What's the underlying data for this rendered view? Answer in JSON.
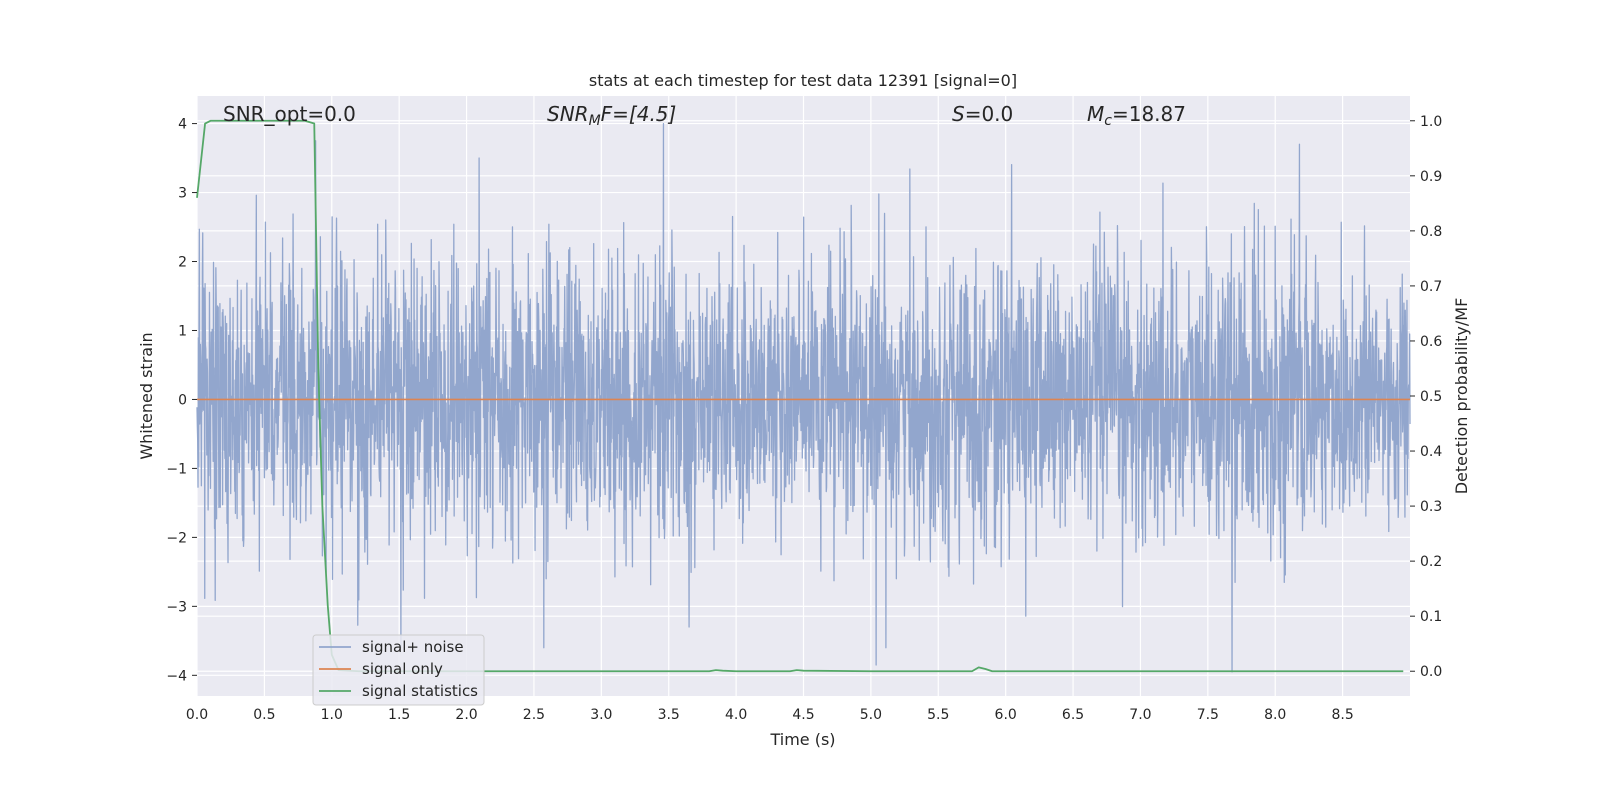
{
  "chart_data": {
    "type": "line",
    "title": "stats at each timestep for test data 12391 [signal=0]",
    "xlabel": "Time (s)",
    "ylabel_left": "Whitened strain",
    "ylabel_right": "Detection probability/MF",
    "xlim": [
      0.0,
      9.0
    ],
    "ylim_left": [
      -4.3,
      4.4
    ],
    "ylim_right": [
      -0.045,
      1.045
    ],
    "grid": true,
    "legend_position": "lower-left",
    "x_ticks": [
      "0.0",
      "0.5",
      "1.0",
      "1.5",
      "2.0",
      "2.5",
      "3.0",
      "3.5",
      "4.0",
      "4.5",
      "5.0",
      "5.5",
      "6.0",
      "6.5",
      "7.0",
      "7.5",
      "8.0",
      "8.5"
    ],
    "y_ticks_left": [
      "4",
      "3",
      "2",
      "1",
      "0",
      "−1",
      "−2",
      "−3",
      "−4"
    ],
    "y_ticks_right": [
      "1.0",
      "0.9",
      "0.8",
      "0.7",
      "0.6",
      "0.5",
      "0.4",
      "0.3",
      "0.2",
      "0.1",
      "0.0"
    ],
    "annotations": {
      "snr_opt": "SNR_opt=0.0",
      "snr_mf_base": "SNR",
      "snr_mf_sub": "M",
      "snr_mf_rest": "F=[4.5]",
      "s_italic": "S",
      "s_rest": "=0.0",
      "mc_italic": "M",
      "mc_sub": "c",
      "mc_rest": "=18.87"
    },
    "series": [
      {
        "name": "signal+ noise",
        "axis": "left",
        "color": "#92a6cd",
        "description": "noise",
        "amplitude_std": 1.0,
        "visible_peaks": [
          {
            "x": 0.88,
            "y": 3.75
          },
          {
            "x": 3.46,
            "y": 4.0
          },
          {
            "x": 5.04,
            "y": -3.85
          },
          {
            "x": 7.68,
            "y": -3.95
          },
          {
            "x": 8.18,
            "y": 3.7
          }
        ]
      },
      {
        "name": "signal only",
        "axis": "left",
        "color": "#dd8452",
        "x": [
          0.0,
          9.0
        ],
        "y": [
          0.0,
          0.0
        ]
      },
      {
        "name": "signal statistics",
        "axis": "right",
        "color": "#55a868",
        "x": [
          0.0,
          0.06,
          0.1,
          0.2,
          0.3,
          0.5,
          0.7,
          0.8,
          0.87,
          0.9,
          0.93,
          0.97,
          1.0,
          1.05,
          1.2,
          2.0,
          3.0,
          3.8,
          3.85,
          3.9,
          4.0,
          4.4,
          4.45,
          4.5,
          5.0,
          5.5,
          5.75,
          5.8,
          5.85,
          5.9,
          6.0,
          7.0,
          8.0,
          8.95
        ],
        "y": [
          0.86,
          0.995,
          1.0,
          1.0,
          1.0,
          1.0,
          1.0,
          1.0,
          0.995,
          0.55,
          0.3,
          0.12,
          0.03,
          0.002,
          0.0,
          0.0,
          0.0,
          0.0,
          0.002,
          0.001,
          0.0,
          0.0,
          0.002,
          0.001,
          0.0,
          0.0,
          0.0,
          0.007,
          0.004,
          0.0,
          0.0,
          0.0,
          0.0,
          0.0
        ]
      }
    ]
  }
}
